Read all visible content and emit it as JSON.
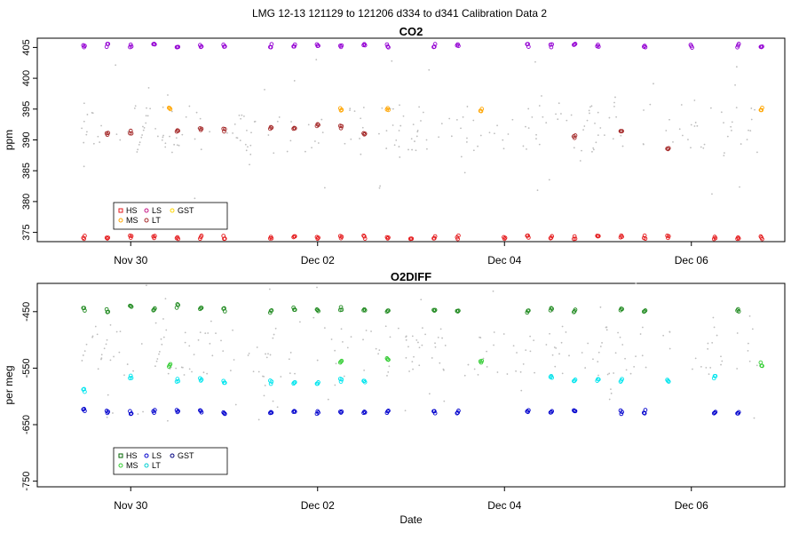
{
  "figure_title": "LMG   12-13    121129 to 121206    d334 to d341   Calibration Data 2",
  "colors": {
    "HS": "#e41a1c",
    "MS": "#ffa500",
    "LS": "#e41a1c",
    "LT": "#a52a2a",
    "GST": "#ffd700",
    "ambient": "#bdbdbd"
  },
  "chart_data": [
    {
      "type": "scatter",
      "title": "CO2",
      "xlabel": "",
      "ylabel": "ppm",
      "xlim": [
        "2012-11-29",
        "2012-12-07"
      ],
      "ylim": [
        373.5,
        406.5
      ],
      "yticks": [
        375,
        380,
        385,
        390,
        395,
        400,
        405
      ],
      "xticks": [
        {
          "date": "2012-11-30",
          "label": "Nov 30"
        },
        {
          "date": "2012-12-02",
          "label": "Dec 02"
        },
        {
          "date": "2012-12-04",
          "label": "Dec 04"
        },
        {
          "date": "2012-12-06",
          "label": "Dec 06"
        }
      ],
      "legend": {
        "position": "bottom-left",
        "entries": [
          {
            "name": "HS",
            "color": "#e41a1c",
            "shape": "square"
          },
          {
            "name": "LS",
            "color": "#c71585",
            "shape": "circle"
          },
          {
            "name": "GST",
            "color": "#ffd700",
            "shape": "circle"
          },
          {
            "name": "MS",
            "color": "#ffa500",
            "shape": "circle"
          },
          {
            "name": "LT",
            "color": "#a52a2a",
            "shape": "circle"
          }
        ]
      },
      "grid": false,
      "series": [
        {
          "name": "HS",
          "color": "#e41a1c",
          "x": [
            "2012-11-29 12:00",
            "2012-11-29 18:00",
            "2012-11-30 00:00",
            "2012-11-30 06:00",
            "2012-11-30 12:00",
            "2012-11-30 18:00",
            "2012-12-01 00:00",
            "2012-12-01 12:00",
            "2012-12-01 18:00",
            "2012-12-02 00:00",
            "2012-12-02 06:00",
            "2012-12-02 12:00",
            "2012-12-02 18:00",
            "2012-12-03 00:00",
            "2012-12-03 06:00",
            "2012-12-03 12:00",
            "2012-12-04 00:00",
            "2012-12-04 06:00",
            "2012-12-04 12:00",
            "2012-12-04 18:00",
            "2012-12-05 00:00",
            "2012-12-05 06:00",
            "2012-12-05 12:00",
            "2012-12-05 18:00",
            "2012-12-06 06:00",
            "2012-12-06 12:00",
            "2012-12-06 18:00"
          ],
          "y": [
            374.2,
            374.2,
            374.2,
            374.2,
            374.2,
            374.2,
            374.2,
            374.2,
            374.2,
            374.2,
            374.2,
            374.2,
            374.2,
            374.2,
            374.2,
            374.2,
            374.2,
            374.2,
            374.2,
            374.2,
            374.2,
            374.2,
            374.2,
            374.2,
            374.2,
            374.2,
            374.2
          ]
        },
        {
          "name": "LS",
          "color": "#9400d3",
          "x": [
            "2012-11-29 12:00",
            "2012-11-29 18:00",
            "2012-11-30 00:00",
            "2012-11-30 06:00",
            "2012-11-30 12:00",
            "2012-11-30 18:00",
            "2012-12-01 00:00",
            "2012-12-01 12:00",
            "2012-12-01 18:00",
            "2012-12-02 00:00",
            "2012-12-02 06:00",
            "2012-12-02 12:00",
            "2012-12-02 18:00",
            "2012-12-03 06:00",
            "2012-12-03 12:00",
            "2012-12-04 06:00",
            "2012-12-04 12:00",
            "2012-12-04 18:00",
            "2012-12-05 00:00",
            "2012-12-05 12:00",
            "2012-12-06 00:00",
            "2012-12-06 12:00",
            "2012-12-06 18:00"
          ],
          "y": [
            405.3,
            405.3,
            405.3,
            405.3,
            405.2,
            405.3,
            405.3,
            405.3,
            405.3,
            405.3,
            405.3,
            405.3,
            405.2,
            405.3,
            405.3,
            405.3,
            405.3,
            405.3,
            405.3,
            405.3,
            405.2,
            405.3,
            405.3
          ]
        },
        {
          "name": "MS",
          "color": "#ffa500",
          "x": [
            "2012-11-30 10:00",
            "2012-12-02 06:00",
            "2012-12-02 18:00",
            "2012-12-03 18:00",
            "2012-12-06 18:00"
          ],
          "y": [
            395.0,
            395.0,
            395.0,
            394.8,
            395.0
          ]
        },
        {
          "name": "LT",
          "color": "#a52a2a",
          "x": [
            "2012-11-29 18:00",
            "2012-11-30 00:00",
            "2012-11-30 12:00",
            "2012-11-30 18:00",
            "2012-12-01 00:00",
            "2012-12-01 12:00",
            "2012-12-01 18:00",
            "2012-12-02 00:00",
            "2012-12-02 06:00",
            "2012-12-02 12:00",
            "2012-12-04 18:00",
            "2012-12-05 06:00",
            "2012-12-05 18:00"
          ],
          "y": [
            391.0,
            391.3,
            391.5,
            391.8,
            391.6,
            391.8,
            392.0,
            392.3,
            392.1,
            390.8,
            390.6,
            391.2,
            388.4
          ]
        }
      ]
    },
    {
      "type": "scatter",
      "title": "O2DIFF",
      "xlabel": "Date",
      "ylabel": "per meg",
      "xlim": [
        "2012-11-29",
        "2012-12-07"
      ],
      "ylim": [
        -760,
        -400
      ],
      "yticks": [
        -450,
        -550,
        -650,
        -750
      ],
      "xticks": [
        {
          "date": "2012-11-30",
          "label": "Nov 30"
        },
        {
          "date": "2012-12-02",
          "label": "Dec 02"
        },
        {
          "date": "2012-12-04",
          "label": "Dec 04"
        },
        {
          "date": "2012-12-06",
          "label": "Dec 06"
        }
      ],
      "legend": {
        "position": "bottom-left",
        "entries": [
          {
            "name": "HS",
            "color": "#006400",
            "shape": "square"
          },
          {
            "name": "LS",
            "color": "#0000cd",
            "shape": "circle"
          },
          {
            "name": "GST",
            "color": "#000080",
            "shape": "circle"
          },
          {
            "name": "MS",
            "color": "#32cd32",
            "shape": "circle"
          },
          {
            "name": "LT",
            "color": "#00ced1",
            "shape": "circle"
          }
        ]
      },
      "grid": false,
      "series": [
        {
          "name": "HS",
          "color": "#228b22",
          "x": [
            "2012-11-29 12:00",
            "2012-11-29 18:00",
            "2012-11-30 00:00",
            "2012-11-30 06:00",
            "2012-11-30 12:00",
            "2012-11-30 18:00",
            "2012-12-01 00:00",
            "2012-12-01 12:00",
            "2012-12-01 18:00",
            "2012-12-02 00:00",
            "2012-12-02 06:00",
            "2012-12-02 12:00",
            "2012-12-02 18:00",
            "2012-12-03 06:00",
            "2012-12-03 12:00",
            "2012-12-04 06:00",
            "2012-12-04 12:00",
            "2012-12-04 18:00",
            "2012-12-05 06:00",
            "2012-12-05 12:00",
            "2012-12-06 12:00"
          ],
          "y": [
            -445,
            -448,
            -442,
            -447,
            -440,
            -444,
            -447,
            -450,
            -446,
            -448,
            -445,
            -449,
            -447,
            -448,
            -447,
            -450,
            -447,
            -449,
            -446,
            -448,
            -448
          ]
        },
        {
          "name": "LS",
          "color": "#0000cd",
          "x": [
            "2012-11-29 12:00",
            "2012-11-29 18:00",
            "2012-11-30 00:00",
            "2012-11-30 06:00",
            "2012-11-30 12:00",
            "2012-11-30 18:00",
            "2012-12-01 00:00",
            "2012-12-01 12:00",
            "2012-12-01 18:00",
            "2012-12-02 00:00",
            "2012-12-02 06:00",
            "2012-12-02 12:00",
            "2012-12-02 18:00",
            "2012-12-03 06:00",
            "2012-12-03 12:00",
            "2012-12-04 06:00",
            "2012-12-04 12:00",
            "2012-12-04 18:00",
            "2012-12-05 06:00",
            "2012-12-05 12:00",
            "2012-12-06 06:00",
            "2012-12-06 12:00"
          ],
          "y": [
            -625,
            -627,
            -628,
            -627,
            -626,
            -627,
            -628,
            -627,
            -627,
            -628,
            -627,
            -628,
            -627,
            -627,
            -628,
            -627,
            -627,
            -627,
            -628,
            -627,
            -627,
            -628
          ]
        },
        {
          "name": "MS",
          "color": "#32cd32",
          "x": [
            "2012-11-30 10:00",
            "2012-12-02 06:00",
            "2012-12-02 18:00",
            "2012-12-03 18:00",
            "2012-12-06 18:00"
          ],
          "y": [
            -545,
            -540,
            -535,
            -540,
            -543
          ]
        },
        {
          "name": "LT",
          "color": "#00e5ee",
          "x": [
            "2012-11-29 12:00",
            "2012-11-30 00:00",
            "2012-11-30 12:00",
            "2012-11-30 18:00",
            "2012-12-01 00:00",
            "2012-12-01 12:00",
            "2012-12-01 18:00",
            "2012-12-02 00:00",
            "2012-12-02 06:00",
            "2012-12-02 12:00",
            "2012-12-04 12:00",
            "2012-12-04 18:00",
            "2012-12-05 00:00",
            "2012-12-05 06:00",
            "2012-12-05 18:00",
            "2012-12-06 06:00"
          ],
          "y": [
            -590,
            -565,
            -572,
            -570,
            -573,
            -575,
            -578,
            -575,
            -572,
            -575,
            -565,
            -570,
            -572,
            -572,
            -573,
            -565
          ]
        }
      ]
    }
  ]
}
